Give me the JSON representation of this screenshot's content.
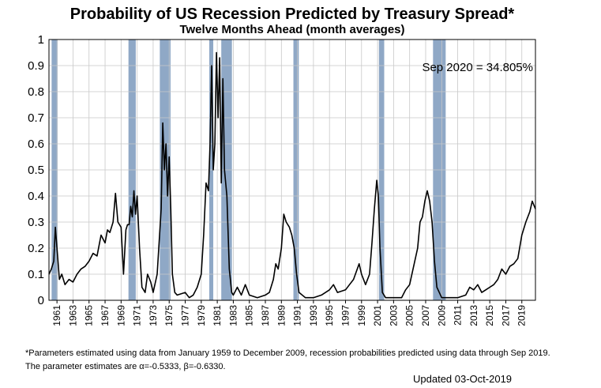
{
  "chart_data": {
    "type": "line",
    "title": "Probability of US Recession Predicted by Treasury Spread*",
    "subtitle": "Twelve Months Ahead (month averages)",
    "annotation": "Sep 2020 = 34.805%",
    "footnotes": [
      "*Parameters estimated using data from January 1959 to December 2009, recession probabilities predicted using data through Sep 2019.",
      "The parameter estimates are α=-0.5333, β=-0.6330."
    ],
    "updated": "Updated 03-Oct-2019",
    "grid": true,
    "recession_color": "#8fa8c6",
    "recessions": [
      [
        1960.33,
        1961.08
      ],
      [
        1969.92,
        1970.83
      ],
      [
        1973.83,
        1975.17
      ],
      [
        1980.0,
        1980.5
      ],
      [
        1981.5,
        1982.83
      ],
      [
        1990.5,
        1991.17
      ],
      [
        2001.17,
        2001.83
      ],
      [
        2007.92,
        2009.5
      ]
    ],
    "xlim": [
      1960,
      2020.7
    ],
    "ylim": [
      0,
      1
    ],
    "xticks": [
      1961,
      1963,
      1965,
      1967,
      1969,
      1971,
      1973,
      1975,
      1977,
      1979,
      1981,
      1983,
      1985,
      1987,
      1989,
      1991,
      1993,
      1995,
      1997,
      1999,
      2001,
      2003,
      2005,
      2007,
      2009,
      2011,
      2013,
      2015,
      2017,
      2019
    ],
    "yticks": [
      0,
      0.1,
      0.2,
      0.3,
      0.4,
      0.5,
      0.6,
      0.7,
      0.8,
      0.9,
      1
    ],
    "series": [
      {
        "color": "#000000",
        "x": [
          1960.0,
          1960.3,
          1960.6,
          1960.8,
          1961.0,
          1961.3,
          1961.6,
          1962,
          1962.5,
          1963,
          1963.5,
          1964,
          1964.5,
          1965,
          1965.5,
          1966,
          1966.5,
          1967,
          1967.3,
          1967.6,
          1968,
          1968.3,
          1968.6,
          1969,
          1969.3,
          1969.6,
          1969.8,
          1970.0,
          1970.2,
          1970.4,
          1970.6,
          1970.8,
          1971.0,
          1971.3,
          1971.6,
          1972,
          1972.3,
          1972.7,
          1973,
          1973.5,
          1973.8,
          1974.0,
          1974.2,
          1974.4,
          1974.6,
          1974.8,
          1975.0,
          1975.2,
          1975.4,
          1975.7,
          1976,
          1977,
          1977.5,
          1978,
          1978.5,
          1979,
          1979.3,
          1979.6,
          1979.9,
          1980.1,
          1980.3,
          1980.5,
          1980.7,
          1980.9,
          1981.1,
          1981.3,
          1981.5,
          1981.7,
          1981.9,
          1982.2,
          1982.5,
          1982.8,
          1983,
          1983.5,
          1984,
          1984.5,
          1985,
          1986,
          1987,
          1987.5,
          1988,
          1988.3,
          1988.6,
          1989,
          1989.3,
          1989.6,
          1990,
          1990.3,
          1990.6,
          1990.9,
          1991.2,
          1992,
          1993,
          1994,
          1995,
          1995.5,
          1996,
          1997,
          1997.5,
          1998,
          1998.7,
          1999,
          1999.5,
          2000,
          2000.3,
          2000.6,
          2000.9,
          2001.1,
          2001.3,
          2001.6,
          2002,
          2003,
          2004,
          2004.5,
          2005,
          2005.5,
          2006,
          2006.3,
          2006.6,
          2006.9,
          2007.2,
          2007.5,
          2007.8,
          2008.1,
          2008.4,
          2008.7,
          2009,
          2010,
          2011,
          2012,
          2012.5,
          2013,
          2013.5,
          2014,
          2014.5,
          2015,
          2015.5,
          2016,
          2016.5,
          2017,
          2017.5,
          2018,
          2018.5,
          2019,
          2019.5,
          2020.0,
          2020.3,
          2020.7
        ],
        "values": [
          0.1,
          0.12,
          0.15,
          0.28,
          0.2,
          0.08,
          0.1,
          0.06,
          0.08,
          0.07,
          0.1,
          0.12,
          0.13,
          0.15,
          0.18,
          0.17,
          0.25,
          0.22,
          0.27,
          0.26,
          0.3,
          0.41,
          0.3,
          0.28,
          0.1,
          0.27,
          0.29,
          0.29,
          0.36,
          0.32,
          0.42,
          0.33,
          0.4,
          0.2,
          0.05,
          0.03,
          0.1,
          0.07,
          0.03,
          0.1,
          0.25,
          0.35,
          0.68,
          0.5,
          0.6,
          0.4,
          0.55,
          0.35,
          0.1,
          0.03,
          0.02,
          0.03,
          0.01,
          0.02,
          0.05,
          0.1,
          0.25,
          0.45,
          0.42,
          0.6,
          0.9,
          0.5,
          0.6,
          0.95,
          0.7,
          0.93,
          0.45,
          0.85,
          0.5,
          0.4,
          0.12,
          0.03,
          0.02,
          0.05,
          0.02,
          0.06,
          0.02,
          0.01,
          0.02,
          0.03,
          0.08,
          0.14,
          0.12,
          0.2,
          0.33,
          0.3,
          0.28,
          0.25,
          0.2,
          0.1,
          0.03,
          0.01,
          0.01,
          0.02,
          0.04,
          0.06,
          0.03,
          0.04,
          0.06,
          0.08,
          0.14,
          0.1,
          0.06,
          0.1,
          0.22,
          0.35,
          0.46,
          0.4,
          0.2,
          0.03,
          0.01,
          0.01,
          0.01,
          0.04,
          0.06,
          0.13,
          0.2,
          0.3,
          0.32,
          0.38,
          0.42,
          0.38,
          0.3,
          0.15,
          0.05,
          0.03,
          0.01,
          0.01,
          0.01,
          0.02,
          0.05,
          0.04,
          0.06,
          0.03,
          0.04,
          0.05,
          0.06,
          0.08,
          0.12,
          0.1,
          0.13,
          0.14,
          0.16,
          0.25,
          0.3,
          0.34,
          0.38,
          0.35
        ]
      }
    ]
  }
}
